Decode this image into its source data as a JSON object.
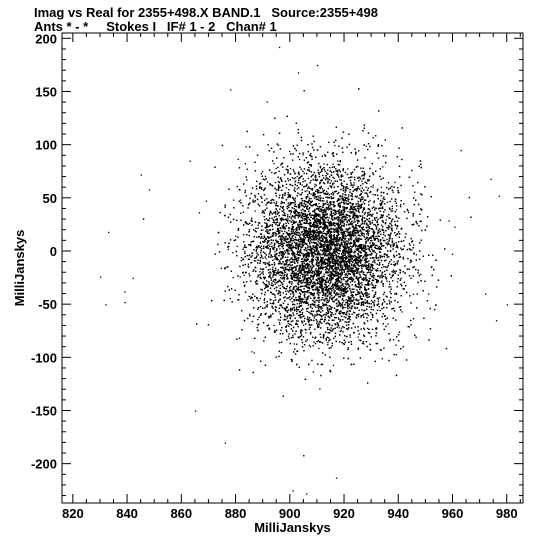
{
  "header": {
    "line1": "Imag vs Real for 2355+498.X BAND.1   Source:2355+498",
    "line2": "Ants * - *     Stokes I   IF# 1 - 2   Chan# 1"
  },
  "chart_data": {
    "type": "scatter",
    "xlabel": "MilliJanskys",
    "ylabel": "MilliJanskys",
    "xlim": [
      816,
      986
    ],
    "ylim": [
      -237,
      205
    ],
    "xticks": [
      820,
      840,
      860,
      880,
      900,
      920,
      940,
      960,
      980
    ],
    "yticks": [
      200,
      150,
      100,
      50,
      0,
      -50,
      -100,
      -150,
      -200
    ],
    "grid": false,
    "distribution": {
      "center_x": 913,
      "center_y": 0,
      "spread_x": 14,
      "spread_y": 40,
      "point_count": 12000
    },
    "outliers": [
      {
        "x": 830,
        "y": -24
      },
      {
        "x": 832,
        "y": -50
      },
      {
        "x": 833,
        "y": 18
      },
      {
        "x": 839,
        "y": -38
      },
      {
        "x": 839,
        "y": -48
      },
      {
        "x": 842,
        "y": -25
      },
      {
        "x": 845,
        "y": 72
      },
      {
        "x": 848,
        "y": 58
      },
      {
        "x": 863,
        "y": 85
      },
      {
        "x": 878,
        "y": 152
      },
      {
        "x": 896,
        "y": 192
      },
      {
        "x": 903,
        "y": 168
      },
      {
        "x": 910,
        "y": 175
      },
      {
        "x": 901,
        "y": -225
      },
      {
        "x": 906,
        "y": -228
      },
      {
        "x": 917,
        "y": -213
      },
      {
        "x": 974,
        "y": 68
      },
      {
        "x": 977,
        "y": 52
      },
      {
        "x": 976,
        "y": -65
      },
      {
        "x": 980,
        "y": -50
      },
      {
        "x": 972,
        "y": -40
      },
      {
        "x": 865,
        "y": -150
      },
      {
        "x": 876,
        "y": -180
      },
      {
        "x": 963,
        "y": 95
      }
    ]
  }
}
